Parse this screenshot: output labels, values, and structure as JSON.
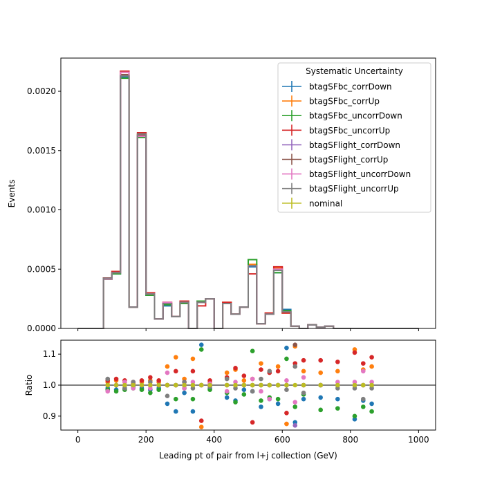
{
  "chart_data": [
    {
      "type": "line",
      "ylabel": "Events",
      "xlim": [
        -50,
        1050
      ],
      "ylim": [
        0,
        0.00228
      ],
      "yticks": [
        0,
        0.0005,
        0.001,
        0.0015,
        0.002
      ],
      "ytick_labels": [
        "0.0000",
        "0.0005",
        "0.0010",
        "0.0015",
        "0.0020"
      ],
      "xticks": [
        0,
        200,
        400,
        600,
        800,
        1000
      ],
      "legend_title": "Systematic Uncertainty",
      "legend_position": "top-right",
      "grid": false,
      "bin_edges": [
        0,
        25,
        50,
        75,
        100,
        125,
        150,
        175,
        200,
        225,
        250,
        275,
        300,
        325,
        350,
        375,
        400,
        425,
        450,
        475,
        500,
        525,
        550,
        575,
        600,
        625,
        650,
        675,
        700,
        725,
        750,
        775,
        800,
        825,
        850,
        875,
        900,
        925,
        950,
        975,
        1000
      ],
      "series": [
        {
          "name": "nominal",
          "color": "#bcbd22",
          "values": [
            0,
            0,
            0,
            0.00042,
            0.00047,
            0.00214,
            0.00018,
            0.00163,
            0.00029,
            8e-05,
            0.00021,
            0.0001,
            0.00022,
            0,
            0.00022,
            0.00025,
            0,
            0.00021,
            0.00012,
            0.00018,
            0.00053,
            4e-05,
            0.00012,
            0.00049,
            0.00014,
            2e-05,
            0,
            3e-05,
            1e-05,
            2e-05,
            0,
            0,
            0,
            0,
            0,
            0,
            0,
            0,
            0,
            0
          ]
        },
        {
          "name": "btagSFbc_corrDown",
          "color": "#1f77b4",
          "values": [
            0,
            0,
            0,
            0.000418,
            0.00046,
            0.00212,
            0.00018,
            0.00162,
            0.00028,
            8e-05,
            0.00019,
            0.0001,
            0.00021,
            0,
            0.00022,
            0.00025,
            0,
            0.00021,
            0.00012,
            0.00018,
            0.00052,
            4e-05,
            0.00012,
            0.00047,
            0.00016,
            2e-05,
            0,
            3e-05,
            1e-05,
            2e-05,
            0,
            0,
            0,
            0,
            0,
            0,
            0,
            0,
            0,
            0
          ]
        },
        {
          "name": "btagSFbc_corrUp",
          "color": "#ff7f0e",
          "values": [
            0,
            0,
            0,
            0.000422,
            0.00048,
            0.00216,
            0.00018,
            0.00164,
            0.0003,
            8e-05,
            0.00022,
            0.0001,
            0.00023,
            0,
            0.00022,
            0.00025,
            0,
            0.00022,
            0.00012,
            0.00018,
            0.00054,
            4e-05,
            0.00013,
            0.00051,
            0.00013,
            2e-05,
            0,
            3e-05,
            1e-05,
            2e-05,
            0,
            0,
            0,
            0,
            0,
            0,
            0,
            0,
            0,
            0
          ]
        },
        {
          "name": "btagSFbc_uncorrDown",
          "color": "#2ca02c",
          "values": [
            0,
            0,
            0,
            0.000414,
            0.00046,
            0.00211,
            0.00018,
            0.00161,
            0.00028,
            8e-05,
            0.0002,
            0.0001,
            0.00021,
            0,
            0.00023,
            0.00025,
            0,
            0.00021,
            0.00012,
            0.00018,
            0.00058,
            4e-05,
            0.00012,
            0.00047,
            0.00015,
            2e-05,
            0,
            3e-05,
            1e-05,
            2e-05,
            0,
            0,
            0,
            0,
            0,
            0,
            0,
            0,
            0,
            0
          ]
        },
        {
          "name": "btagSFbc_uncorrUp",
          "color": "#d62728",
          "values": [
            0,
            0,
            0,
            0.000426,
            0.00048,
            0.00217,
            0.00018,
            0.00165,
            0.0003,
            8e-05,
            0.00022,
            0.0001,
            0.00023,
            0,
            0.00019,
            0.00025,
            0,
            0.00022,
            0.00012,
            0.00018,
            0.00046,
            4e-05,
            0.00013,
            0.00052,
            0.00013,
            2e-05,
            0,
            3e-05,
            1e-05,
            2e-05,
            0,
            0,
            0,
            0,
            0,
            0,
            0,
            0,
            0,
            0
          ]
        },
        {
          "name": "btagSFlight_corrDown",
          "color": "#9467bd",
          "values": [
            0,
            0,
            0,
            0.00042,
            0.00047,
            0.00214,
            0.00018,
            0.00163,
            0.00029,
            8e-05,
            0.00021,
            0.0001,
            0.00022,
            0,
            0.00022,
            0.00025,
            0,
            0.00021,
            0.00012,
            0.00018,
            0.00053,
            4e-05,
            0.00012,
            0.00049,
            0.00014,
            2e-05,
            0,
            3e-05,
            1e-05,
            2e-05,
            0,
            0,
            0,
            0,
            0,
            0,
            0,
            0,
            0,
            0
          ]
        },
        {
          "name": "btagSFlight_corrUp",
          "color": "#8c564b",
          "values": [
            0,
            0,
            0,
            0.00042,
            0.00047,
            0.00214,
            0.00018,
            0.00163,
            0.00029,
            8e-05,
            0.00021,
            0.0001,
            0.00022,
            0,
            0.00022,
            0.00025,
            0,
            0.00021,
            0.00012,
            0.00018,
            0.00053,
            4e-05,
            0.00012,
            0.00049,
            0.00014,
            2e-05,
            0,
            3e-05,
            1e-05,
            2e-05,
            0,
            0,
            0,
            0,
            0,
            0,
            0,
            0,
            0,
            0
          ]
        },
        {
          "name": "btagSFlight_uncorrDown",
          "color": "#e377c2",
          "values": [
            0,
            0,
            0,
            0.000416,
            0.00047,
            0.00216,
            0.00018,
            0.00162,
            0.00029,
            8e-05,
            0.00022,
            0.0001,
            0.00022,
            0,
            0.00022,
            0.00025,
            0,
            0.00021,
            0.00012,
            0.00018,
            0.00053,
            4e-05,
            0.00012,
            0.0005,
            0.00014,
            2e-05,
            0,
            3e-05,
            1e-05,
            2e-05,
            0,
            0,
            0,
            0,
            0,
            0,
            0,
            0,
            0,
            0
          ]
        },
        {
          "name": "btagSFlight_uncorrUp",
          "color": "#7f7f7f",
          "values": [
            0,
            0,
            0,
            0.000424,
            0.00047,
            0.00213,
            0.00018,
            0.00164,
            0.00029,
            8e-05,
            0.00021,
            0.0001,
            0.00022,
            0,
            0.00022,
            0.00025,
            0,
            0.00021,
            0.00012,
            0.00018,
            0.00053,
            4e-05,
            0.00012,
            0.00049,
            0.00014,
            2e-05,
            0,
            3e-05,
            1e-05,
            2e-05,
            0,
            0,
            0,
            0,
            0,
            0,
            0,
            0,
            0,
            0
          ]
        }
      ]
    },
    {
      "type": "scatter",
      "xlabel": "Leading pt of pair from l+j collection (GeV)",
      "ylabel": "Ratio",
      "xlim": [
        -50,
        1050
      ],
      "ylim": [
        0.855,
        1.145
      ],
      "yticks": [
        0.9,
        1.0,
        1.1
      ],
      "ytick_labels": [
        "0.9",
        "1.0",
        "1.1"
      ],
      "xticks": [
        0,
        200,
        400,
        600,
        800,
        1000
      ],
      "reference_line": 1.0,
      "x": [
        87.5,
        112.5,
        137.5,
        162.5,
        187.5,
        212.5,
        237.5,
        262.5,
        287.5,
        312.5,
        337.5,
        362.5,
        387.5,
        437.5,
        462.5,
        487.5,
        512.5,
        537.5,
        562.5,
        587.5,
        612.5,
        637.5,
        662.5,
        712.5,
        762.5,
        812.5,
        837.5,
        862.5
      ],
      "series": [
        {
          "name": "btagSFbc_corrDown",
          "color": "#1f77b4",
          "values": [
            0.99,
            0.985,
            0.99,
            0.995,
            0.99,
            0.985,
            0.99,
            0.94,
            0.915,
            0.975,
            0.915,
            1.13,
            0.99,
            0.96,
            0.95,
            0.985,
            0.98,
            0.93,
            0.955,
            0.94,
            1.12,
            0.88,
            0.955,
            0.96,
            0.955,
            0.89,
            0.95,
            0.94
          ]
        },
        {
          "name": "btagSFbc_corrUp",
          "color": "#ff7f0e",
          "values": [
            1.01,
            1.015,
            1.01,
            1.005,
            1.01,
            1.015,
            1.01,
            1.06,
            1.09,
            1.02,
            1.085,
            0.865,
            1.01,
            1.04,
            1.05,
            1.015,
            1.02,
            1.07,
            1.045,
            1.06,
            0.875,
            1.125,
            1.045,
            1.04,
            1.045,
            1.115,
            1.05,
            1.06
          ]
        },
        {
          "name": "btagSFbc_uncorrDown",
          "color": "#2ca02c",
          "values": [
            0.985,
            0.98,
            0.985,
            0.99,
            0.985,
            0.975,
            0.985,
            1.0,
            0.955,
            0.99,
            0.955,
            1.115,
            0.985,
            0.975,
            0.945,
            0.97,
            1.11,
            0.95,
            0.96,
            0.955,
            1.085,
            0.93,
            0.97,
            0.92,
            0.925,
            0.9,
            0.93,
            0.915
          ]
        },
        {
          "name": "btagSFbc_uncorrUp",
          "color": "#d62728",
          "values": [
            1.015,
            1.02,
            1.015,
            1.01,
            1.015,
            1.025,
            1.015,
            1.0,
            1.045,
            1.01,
            1.045,
            0.885,
            1.015,
            1.025,
            1.055,
            1.03,
            0.88,
            1.05,
            1.04,
            1.045,
            0.91,
            1.07,
            1.08,
            1.08,
            1.075,
            1.105,
            1.07,
            1.09
          ]
        },
        {
          "name": "btagSFlight_corrDown",
          "color": "#9467bd",
          "values": [
            1.0,
            1.0,
            1.0,
            1.0,
            1.0,
            1.0,
            1.0,
            1.0,
            1.0,
            1.0,
            1.0,
            1.0,
            1.0,
            1.0,
            1.0,
            1.0,
            1.0,
            1.0,
            1.0,
            1.0,
            1.0,
            0.87,
            1.0,
            1.0,
            1.0,
            1.0,
            1.0,
            1.0
          ]
        },
        {
          "name": "btagSFlight_corrUp",
          "color": "#8c564b",
          "values": [
            1.0,
            1.0,
            1.0,
            1.0,
            1.0,
            1.0,
            1.0,
            1.0,
            1.0,
            1.0,
            1.0,
            1.0,
            1.0,
            1.0,
            1.0,
            1.0,
            1.0,
            1.0,
            1.0,
            1.0,
            1.0,
            1.13,
            1.0,
            1.0,
            1.0,
            1.0,
            1.0,
            1.0
          ]
        },
        {
          "name": "btagSFlight_uncorrDown",
          "color": "#e377c2",
          "values": [
            0.98,
            1.0,
            1.01,
            0.99,
            1.0,
            0.99,
            1.0,
            1.04,
            1.0,
            0.99,
            1.01,
            1.0,
            1.005,
            0.98,
            1.01,
            1.0,
            1.02,
            0.98,
            0.955,
            1.0,
            1.015,
            0.945,
            1.025,
            1.0,
            1.01,
            1.01,
            1.045,
            1.01
          ]
        },
        {
          "name": "btagSFlight_uncorrUp",
          "color": "#7f7f7f",
          "values": [
            1.02,
            1.0,
            0.99,
            1.01,
            1.0,
            1.01,
            1.0,
            0.965,
            1.0,
            1.01,
            0.99,
            1.0,
            0.995,
            1.02,
            0.99,
            1.0,
            0.98,
            1.02,
            1.045,
            1.0,
            0.985,
            1.06,
            0.975,
            1.0,
            0.99,
            0.99,
            0.955,
            0.99
          ]
        },
        {
          "name": "nominal",
          "color": "#bcbd22",
          "values": [
            1.0,
            1.0,
            1.0,
            1.0,
            1.0,
            1.0,
            1.0,
            1.0,
            1.0,
            1.0,
            1.0,
            1.0,
            1.0,
            1.0,
            1.0,
            1.0,
            1.0,
            1.0,
            1.0,
            1.0,
            1.0,
            1.0,
            1.0,
            1.0,
            1.0,
            1.0,
            1.0,
            1.0
          ]
        }
      ]
    }
  ]
}
